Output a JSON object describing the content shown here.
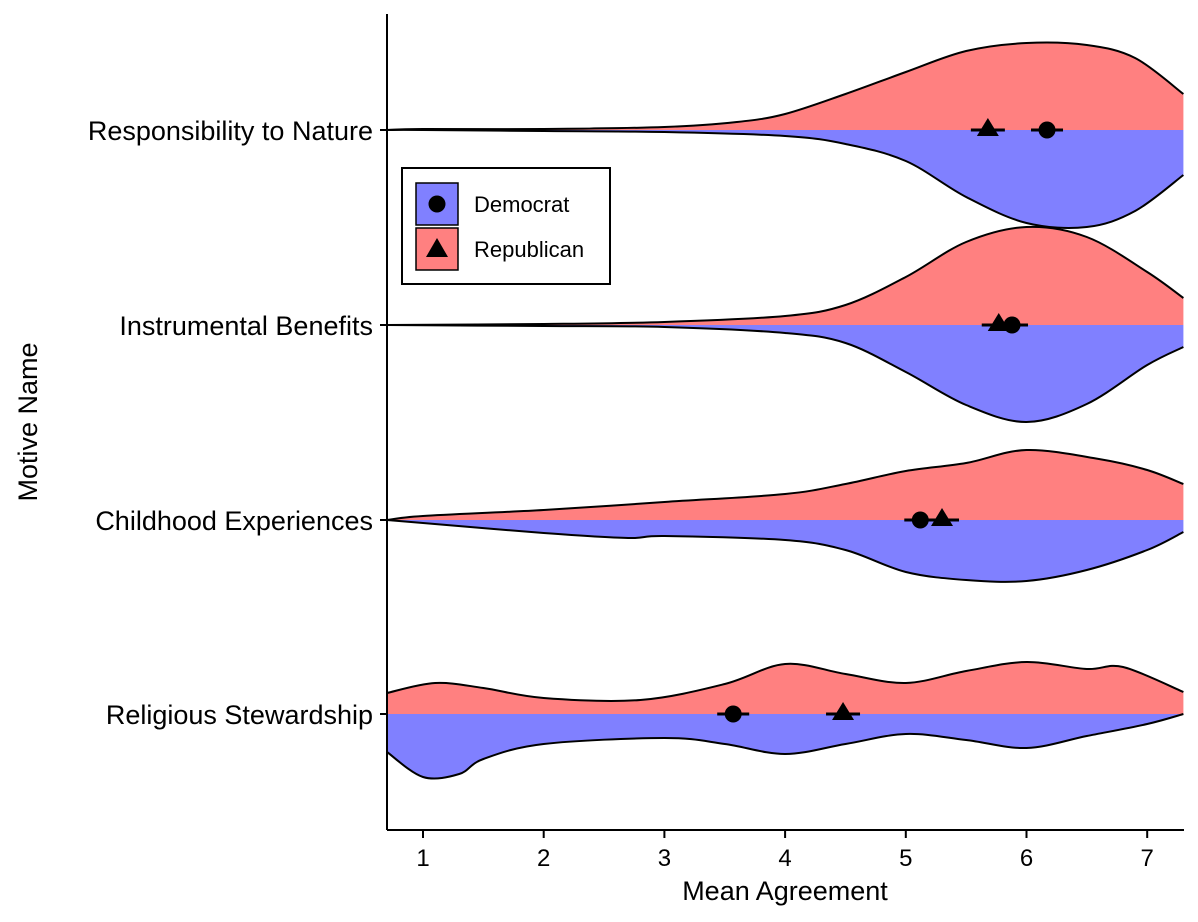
{
  "chart_data": {
    "type": "violin",
    "orientation": "horizontal-split",
    "xlabel": "Mean Agreement",
    "ylabel": "Motive Name",
    "xlim": [
      0.7,
      7.3
    ],
    "xticks": [
      1,
      2,
      3,
      4,
      5,
      6,
      7
    ],
    "grid": false,
    "legend_position": "top-left",
    "series": [
      {
        "name": "Democrat",
        "color": "#8080ff",
        "marker": "circle",
        "side": "below"
      },
      {
        "name": "Republican",
        "color": "#ff8080",
        "marker": "triangle",
        "side": "above"
      }
    ],
    "categories": [
      {
        "name": "Responsibility to Nature",
        "means": {
          "Democrat": 6.17,
          "Republican": 5.68
        },
        "density": {
          "Republican": [
            [
              0.7,
              0.0
            ],
            [
              1.0,
              0.01
            ],
            [
              2.0,
              0.01
            ],
            [
              3.0,
              0.03
            ],
            [
              3.6,
              0.08
            ],
            [
              4.0,
              0.16
            ],
            [
              4.5,
              0.36
            ],
            [
              5.0,
              0.58
            ],
            [
              5.5,
              0.79
            ],
            [
              6.0,
              0.87
            ],
            [
              6.5,
              0.85
            ],
            [
              6.9,
              0.72
            ],
            [
              7.3,
              0.36
            ]
          ],
          "Democrat": [
            [
              0.7,
              0.0
            ],
            [
              1.0,
              0.0
            ],
            [
              2.0,
              0.01
            ],
            [
              3.0,
              0.02
            ],
            [
              4.0,
              0.06
            ],
            [
              4.5,
              0.14
            ],
            [
              5.0,
              0.31
            ],
            [
              5.5,
              0.67
            ],
            [
              6.0,
              0.93
            ],
            [
              6.5,
              0.97
            ],
            [
              6.9,
              0.81
            ],
            [
              7.3,
              0.45
            ]
          ]
        }
      },
      {
        "name": "Instrumental Benefits",
        "means": {
          "Democrat": 5.88,
          "Republican": 5.77
        },
        "density": {
          "Republican": [
            [
              0.7,
              0.0
            ],
            [
              2.0,
              0.01
            ],
            [
              3.0,
              0.03
            ],
            [
              4.0,
              0.09
            ],
            [
              4.5,
              0.2
            ],
            [
              5.0,
              0.48
            ],
            [
              5.5,
              0.83
            ],
            [
              6.0,
              0.98
            ],
            [
              6.5,
              0.88
            ],
            [
              7.0,
              0.53
            ],
            [
              7.3,
              0.27
            ]
          ],
          "Democrat": [
            [
              0.7,
              0.0
            ],
            [
              2.0,
              0.01
            ],
            [
              3.0,
              0.02
            ],
            [
              4.0,
              0.08
            ],
            [
              4.5,
              0.18
            ],
            [
              5.0,
              0.47
            ],
            [
              5.5,
              0.8
            ],
            [
              6.0,
              0.97
            ],
            [
              6.5,
              0.79
            ],
            [
              7.0,
              0.4
            ],
            [
              7.3,
              0.22
            ]
          ]
        }
      },
      {
        "name": "Childhood Experiences",
        "means": {
          "Democrat": 5.12,
          "Republican": 5.3
        },
        "density": {
          "Republican": [
            [
              0.7,
              0.0
            ],
            [
              1.0,
              0.04
            ],
            [
              2.0,
              0.1
            ],
            [
              3.0,
              0.18
            ],
            [
              4.0,
              0.26
            ],
            [
              4.5,
              0.36
            ],
            [
              5.0,
              0.49
            ],
            [
              5.5,
              0.57
            ],
            [
              6.0,
              0.7
            ],
            [
              6.6,
              0.61
            ],
            [
              7.0,
              0.5
            ],
            [
              7.3,
              0.36
            ]
          ],
          "Democrat": [
            [
              0.7,
              0.0
            ],
            [
              1.0,
              0.03
            ],
            [
              2.0,
              0.13
            ],
            [
              2.7,
              0.18
            ],
            [
              3.0,
              0.16
            ],
            [
              4.0,
              0.2
            ],
            [
              4.5,
              0.3
            ],
            [
              5.0,
              0.52
            ],
            [
              5.5,
              0.6
            ],
            [
              6.0,
              0.61
            ],
            [
              6.5,
              0.5
            ],
            [
              7.0,
              0.3
            ],
            [
              7.3,
              0.12
            ]
          ]
        }
      },
      {
        "name": "Religious Stewardship",
        "means": {
          "Democrat": 3.57,
          "Republican": 4.48
        },
        "density": {
          "Republican": [
            [
              0.7,
              0.21
            ],
            [
              1.1,
              0.31
            ],
            [
              1.5,
              0.26
            ],
            [
              2.0,
              0.16
            ],
            [
              2.8,
              0.14
            ],
            [
              3.5,
              0.3
            ],
            [
              4.0,
              0.5
            ],
            [
              4.5,
              0.4
            ],
            [
              5.0,
              0.31
            ],
            [
              5.5,
              0.43
            ],
            [
              6.0,
              0.52
            ],
            [
              6.5,
              0.45
            ],
            [
              6.8,
              0.47
            ],
            [
              7.3,
              0.22
            ]
          ],
          "Democrat": [
            [
              0.7,
              0.38
            ],
            [
              1.0,
              0.63
            ],
            [
              1.3,
              0.6
            ],
            [
              1.5,
              0.45
            ],
            [
              2.0,
              0.3
            ],
            [
              3.0,
              0.24
            ],
            [
              3.5,
              0.3
            ],
            [
              4.0,
              0.4
            ],
            [
              4.5,
              0.3
            ],
            [
              5.0,
              0.2
            ],
            [
              5.5,
              0.26
            ],
            [
              6.0,
              0.34
            ],
            [
              6.5,
              0.22
            ],
            [
              7.0,
              0.1
            ],
            [
              7.3,
              0.0
            ]
          ]
        }
      }
    ]
  }
}
